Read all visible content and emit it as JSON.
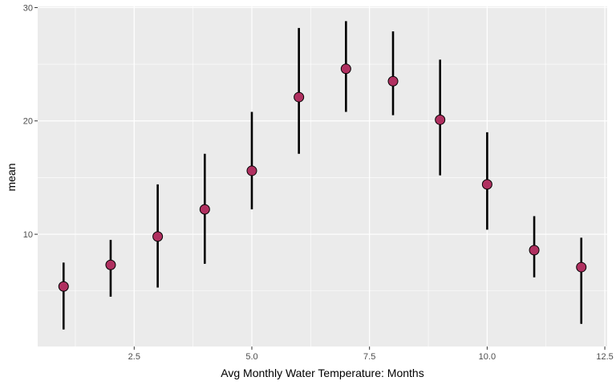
{
  "chart_data": {
    "type": "scatter",
    "xlabel": "Avg Monthly Water Temperature: Months",
    "ylabel": "mean",
    "xlim": [
      0.45,
      12.55
    ],
    "ylim": [
      0.1,
      30.1
    ],
    "x_ticks": [
      2.5,
      5.0,
      7.5,
      10.0,
      12.5
    ],
    "x_tick_labels": [
      "2.5",
      "5.0",
      "7.5",
      "10.0",
      "12.5"
    ],
    "y_ticks": [
      10,
      20,
      30
    ],
    "y_tick_labels": [
      "10",
      "20",
      "30"
    ],
    "grid": true,
    "legend": "none",
    "panel_color": "#ebebeb",
    "grid_color": "#ffffff",
    "point_color": "#b03060",
    "errorbar_color": "#000000",
    "points": [
      {
        "x": 1,
        "mean": 5.4,
        "lower": 1.6,
        "upper": 7.5
      },
      {
        "x": 2,
        "mean": 7.3,
        "lower": 4.5,
        "upper": 9.5
      },
      {
        "x": 3,
        "mean": 9.8,
        "lower": 5.3,
        "upper": 14.4
      },
      {
        "x": 4,
        "mean": 12.2,
        "lower": 7.4,
        "upper": 17.1
      },
      {
        "x": 5,
        "mean": 15.6,
        "lower": 12.2,
        "upper": 20.8
      },
      {
        "x": 6,
        "mean": 22.1,
        "lower": 17.1,
        "upper": 28.2
      },
      {
        "x": 7,
        "mean": 24.6,
        "lower": 20.8,
        "upper": 28.8
      },
      {
        "x": 8,
        "mean": 23.5,
        "lower": 20.5,
        "upper": 27.9
      },
      {
        "x": 9,
        "mean": 20.1,
        "lower": 15.2,
        "upper": 25.4
      },
      {
        "x": 10,
        "mean": 14.4,
        "lower": 10.4,
        "upper": 19.0
      },
      {
        "x": 11,
        "mean": 8.6,
        "lower": 6.2,
        "upper": 11.6
      },
      {
        "x": 12,
        "mean": 7.1,
        "lower": 2.1,
        "upper": 9.7
      }
    ]
  }
}
